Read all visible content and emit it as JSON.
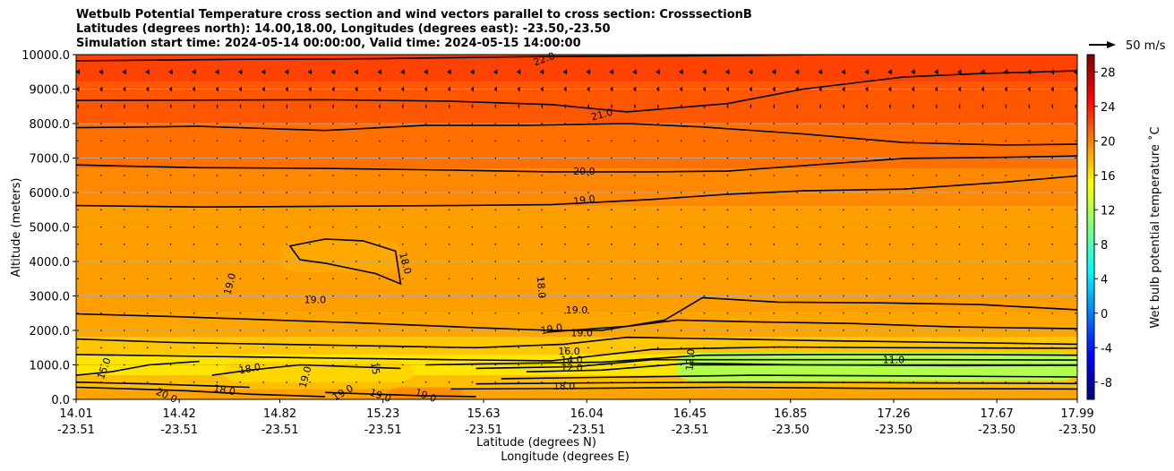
{
  "chart_data": {
    "type": "heatmap",
    "title_lines": [
      "Wetbulb Potential Temperature cross section and wind vectors parallel to cross section: CrosssectionB",
      "Latitudes (degrees north): 14.00,18.00, Longitudes (degrees east): -23.50,-23.50",
      "Simulation start time: 2024-05-14 00:00:00, Valid time: 2024-05-15 14:00:00"
    ],
    "xlabel_lat": "Latitude (degrees N)",
    "xlabel_lon": "Longitude (degrees E)",
    "ylabel": "Altitude (meters)",
    "xlim": [
      14.01,
      17.99
    ],
    "ylim": [
      0,
      10000
    ],
    "x_ticks": [
      {
        "lat": "14.01",
        "lon": "-23.51",
        "v": 14.01
      },
      {
        "lat": "14.42",
        "lon": "-23.51",
        "v": 14.42
      },
      {
        "lat": "14.82",
        "lon": "-23.51",
        "v": 14.82
      },
      {
        "lat": "15.23",
        "lon": "-23.51",
        "v": 15.23
      },
      {
        "lat": "15.63",
        "lon": "-23.51",
        "v": 15.63
      },
      {
        "lat": "16.04",
        "lon": "-23.51",
        "v": 16.04
      },
      {
        "lat": "16.45",
        "lon": "-23.51",
        "v": 16.45
      },
      {
        "lat": "16.85",
        "lon": "-23.50",
        "v": 16.85
      },
      {
        "lat": "17.26",
        "lon": "-23.50",
        "v": 17.26
      },
      {
        "lat": "17.67",
        "lon": "-23.50",
        "v": 17.67
      },
      {
        "lat": "17.99",
        "lon": "-23.50",
        "v": 17.99
      }
    ],
    "y_ticks": [
      "0.0",
      "1000.0",
      "2000.0",
      "3000.0",
      "4000.0",
      "5000.0",
      "6000.0",
      "7000.0",
      "8000.0",
      "9000.0",
      "10000.0"
    ],
    "grid": "horizontal",
    "colorbar": {
      "label": "Wet bulb potential temperature ˚C",
      "range": [
        -10,
        30
      ],
      "ticks": [
        "-8",
        "-4",
        "0",
        "4",
        "8",
        "12",
        "16",
        "20",
        "24",
        "28"
      ],
      "colors": [
        "#00007f",
        "#0000ff",
        "#007fff",
        "#00ffff",
        "#7fff7f",
        "#ffff00",
        "#ff7f00",
        "#ff0000",
        "#7f0000"
      ]
    },
    "wind_reference": "50 m/s",
    "bands": [
      {
        "z0": 9200,
        "z1": 10000,
        "temp": 22.4
      },
      {
        "z0": 8000,
        "z1": 9200,
        "temp": 21.6
      },
      {
        "z0": 6700,
        "z1": 8000,
        "temp": 20.6
      },
      {
        "z0": 5600,
        "z1": 6700,
        "temp": 19.6
      },
      {
        "z0": 2500,
        "z1": 5600,
        "temp": 18.8
      },
      {
        "z0": 1800,
        "z1": 2500,
        "temp": 18.5
      },
      {
        "z0": 1300,
        "z1": 1800,
        "temp": 17.2
      },
      {
        "z0": 700,
        "z1": 1300,
        "temp": 16.0
      },
      {
        "z0": 300,
        "z1": 700,
        "temp": 17.5
      },
      {
        "z0": 0,
        "z1": 300,
        "temp": 18.6
      }
    ],
    "patches": [
      {
        "x0": 16.4,
        "x1": 17.99,
        "z0": 550,
        "z1": 1350,
        "temp": 12.0
      },
      {
        "x0": 14.6,
        "x1": 15.35,
        "z0": 500,
        "z1": 1100,
        "temp": 16.6
      },
      {
        "x0": 14.82,
        "x1": 15.3,
        "z0": 3700,
        "z1": 4600,
        "temp": 18.4
      },
      {
        "x0": 15.25,
        "x1": 15.55,
        "z0": 0,
        "z1": 350,
        "temp": 19.4
      }
    ],
    "contours": [
      {
        "level": "22.0",
        "x": [
          14.01,
          14.6,
          15.2,
          15.8,
          16.4,
          17.0,
          17.5,
          17.99
        ],
        "z": [
          9820,
          9860,
          9880,
          9940,
          9960,
          10000,
          10000,
          10000
        ]
      },
      {
        "level": "21.0",
        "x": [
          14.01,
          14.5,
          15.0,
          15.5,
          15.9,
          16.2,
          16.6,
          16.9,
          17.3,
          17.6,
          17.99
        ],
        "z": [
          8670,
          8680,
          8690,
          8650,
          8550,
          8340,
          8580,
          9000,
          9350,
          9450,
          9530
        ]
      },
      {
        "level": "21.0",
        "x": [
          14.01,
          14.5,
          15.0,
          15.4,
          15.8,
          16.2,
          16.5,
          16.9,
          17.3,
          17.7,
          17.99
        ],
        "z": [
          7880,
          7920,
          7800,
          7950,
          7950,
          8000,
          7900,
          7700,
          7450,
          7380,
          7400
        ]
      },
      {
        "level": "20.0",
        "x": [
          14.01,
          14.5,
          15.0,
          15.5,
          15.9,
          16.3,
          16.6,
          16.9,
          17.3,
          17.7,
          17.99
        ],
        "z": [
          6800,
          6720,
          6700,
          6650,
          6600,
          6600,
          6620,
          6780,
          6990,
          7020,
          7060
        ]
      },
      {
        "level": "19.0",
        "x": [
          14.01,
          14.5,
          15.0,
          15.5,
          15.9,
          16.3,
          16.6,
          16.9,
          17.3,
          17.7,
          17.99
        ],
        "z": [
          5620,
          5580,
          5600,
          5620,
          5650,
          5800,
          5950,
          6050,
          6100,
          6300,
          6480
        ]
      },
      {
        "level": "18.0",
        "x": [
          14.9,
          14.86,
          15.0,
          15.15,
          15.28,
          15.3,
          15.2,
          15.0,
          14.9
        ],
        "z": [
          4050,
          4450,
          4650,
          4600,
          4300,
          3350,
          3650,
          3950,
          4050
        ]
      },
      {
        "level": "19.0",
        "x": [
          14.01,
          14.4,
          14.8,
          15.2,
          15.6,
          15.9,
          16.1,
          16.35,
          16.5,
          16.8,
          17.2,
          17.6,
          17.99
        ],
        "z": [
          2480,
          2400,
          2300,
          2200,
          2080,
          2000,
          2000,
          2300,
          2950,
          2820,
          2800,
          2750,
          2600
        ]
      },
      {
        "level": "19.0",
        "x": [
          15.88,
          16.2,
          16.4,
          16.7,
          17.1,
          17.5,
          17.99
        ],
        "z": [
          1950,
          2120,
          2300,
          2250,
          2200,
          2100,
          2050
        ]
      },
      {
        "level": "18.0",
        "x": [
          14.01,
          14.4,
          14.8,
          15.2,
          15.6,
          15.95,
          16.2,
          16.6,
          17.0,
          17.5,
          17.99
        ],
        "z": [
          1750,
          1650,
          1600,
          1550,
          1500,
          1600,
          1800,
          1750,
          1700,
          1650,
          1600
        ]
      },
      {
        "level": "17.0",
        "x": [
          14.01,
          14.5,
          15.0,
          15.5,
          15.9,
          16.3,
          16.8,
          17.3,
          17.99
        ],
        "z": [
          1300,
          1250,
          1200,
          1150,
          1120,
          1450,
          1520,
          1500,
          1480
        ]
      },
      {
        "level": "16.0",
        "x": [
          15.4,
          15.8,
          16.1,
          16.5,
          17.0,
          17.5,
          17.99
        ],
        "z": [
          1000,
          1050,
          1080,
          1280,
          1300,
          1300,
          1280
        ]
      },
      {
        "level": "14.0",
        "x": [
          15.6,
          16.0,
          16.3,
          16.8,
          17.4,
          17.99
        ],
        "z": [
          900,
          950,
          1150,
          1150,
          1150,
          1140
        ]
      },
      {
        "level": "12.0",
        "x": [
          15.8,
          16.1,
          16.45,
          16.9,
          17.5,
          17.99
        ],
        "z": [
          800,
          850,
          1050,
          1000,
          980,
          990
        ]
      },
      {
        "level": "11.0",
        "x": [
          16.45,
          16.9,
          17.4,
          17.99
        ],
        "z": [
          1000,
          1000,
          1000,
          1000
        ]
      },
      {
        "level": "14.0",
        "x": [
          15.7,
          16.2,
          16.7,
          17.3,
          17.99
        ],
        "z": [
          600,
          650,
          700,
          680,
          650
        ]
      },
      {
        "level": "16.0",
        "x": [
          15.6,
          16.1,
          16.7,
          17.3,
          17.99
        ],
        "z": [
          450,
          480,
          500,
          480,
          460
        ]
      },
      {
        "level": "18.0",
        "x": [
          15.5,
          16.0,
          16.6,
          17.2,
          17.99
        ],
        "z": [
          300,
          320,
          350,
          320,
          300
        ]
      },
      {
        "level": "15.0",
        "x": [
          14.01,
          14.15,
          14.3,
          14.5
        ],
        "z": [
          700,
          800,
          1000,
          1100
        ]
      },
      {
        "level": "18.0",
        "x": [
          14.55,
          14.7,
          14.9,
          15.1,
          15.3
        ],
        "z": [
          700,
          850,
          1000,
          950,
          900
        ]
      },
      {
        "level": "18.0",
        "x": [
          14.01,
          14.3,
          14.5,
          14.7
        ],
        "z": [
          500,
          450,
          400,
          350
        ]
      },
      {
        "level": "20.0",
        "x": [
          14.01,
          14.25,
          14.45,
          14.7,
          15.0
        ],
        "z": [
          350,
          300,
          250,
          150,
          80
        ]
      },
      {
        "level": "19.0",
        "x": [
          15.0,
          15.2,
          15.4,
          15.6
        ],
        "z": [
          200,
          150,
          100,
          80
        ]
      }
    ],
    "contour_labels": [
      {
        "text": "22.0",
        "x": 15.87,
        "z": 9880,
        "rot": -20
      },
      {
        "text": "21.0",
        "x": 16.1,
        "z": 8270,
        "rot": -15
      },
      {
        "text": "20.0",
        "x": 16.03,
        "z": 6620,
        "rot": 0
      },
      {
        "text": "19.0",
        "x": 16.03,
        "z": 5790,
        "rot": -8
      },
      {
        "text": "19.0",
        "x": 14.62,
        "z": 3350,
        "rot": -75
      },
      {
        "text": "19.0",
        "x": 14.96,
        "z": 2900,
        "rot": 0
      },
      {
        "text": "18.0",
        "x": 15.32,
        "z": 3950,
        "rot": 75
      },
      {
        "text": "18.0",
        "x": 15.86,
        "z": 3250,
        "rot": 85
      },
      {
        "text": "19.0",
        "x": 16.0,
        "z": 2600,
        "rot": 0
      },
      {
        "text": "19.0",
        "x": 15.9,
        "z": 2050,
        "rot": -10
      },
      {
        "text": "19.0",
        "x": 16.02,
        "z": 1940,
        "rot": 0
      },
      {
        "text": "16.0",
        "x": 15.97,
        "z": 1400,
        "rot": 0
      },
      {
        "text": "14.0",
        "x": 15.98,
        "z": 1150,
        "rot": 0
      },
      {
        "text": "12.0",
        "x": 15.98,
        "z": 920,
        "rot": 0
      },
      {
        "text": "12.0",
        "x": 16.45,
        "z": 1150,
        "rot": -85
      },
      {
        "text": "18.0",
        "x": 15.95,
        "z": 390,
        "rot": 0
      },
      {
        "text": "11.0",
        "x": 17.26,
        "z": 1150,
        "rot": 0
      },
      {
        "text": "15.0",
        "x": 14.12,
        "z": 900,
        "rot": -70
      },
      {
        "text": "18.0",
        "x": 14.7,
        "z": 900,
        "rot": -10
      },
      {
        "text": "18.0",
        "x": 14.6,
        "z": 280,
        "rot": 10
      },
      {
        "text": "19.0",
        "x": 14.92,
        "z": 650,
        "rot": -75
      },
      {
        "text": "15",
        "x": 15.2,
        "z": 900,
        "rot": 80
      },
      {
        "text": "20.0",
        "x": 14.37,
        "z": 120,
        "rot": 25
      },
      {
        "text": "19.0",
        "x": 15.07,
        "z": 200,
        "rot": -30
      },
      {
        "text": "19.0",
        "x": 15.22,
        "z": 120,
        "rot": 20
      },
      {
        "text": "19.0",
        "x": 15.4,
        "z": 120,
        "rot": 20
      }
    ],
    "wind_levels": [
      {
        "z": 9500,
        "u": -11
      },
      {
        "z": 9000,
        "u": -8
      },
      {
        "z": 8500,
        "u": -4
      },
      {
        "z": 8000,
        "u": -2
      },
      {
        "z": 7500,
        "u": 0
      },
      {
        "z": 7000,
        "u": 0
      },
      {
        "z": 6500,
        "u": 0
      },
      {
        "z": 6000,
        "u": 0
      },
      {
        "z": 5500,
        "u": 0
      },
      {
        "z": 5000,
        "u": 0
      },
      {
        "z": 4500,
        "u": 0
      },
      {
        "z": 4000,
        "u": 0
      },
      {
        "z": 3500,
        "u": 0
      },
      {
        "z": 3000,
        "u": 0
      },
      {
        "z": 2500,
        "u": 0
      },
      {
        "z": 2000,
        "u": 0
      },
      {
        "z": 1500,
        "u": 0
      },
      {
        "z": 1000,
        "u": 0
      },
      {
        "z": 500,
        "u": 0
      }
    ],
    "wind_columns": 44
  }
}
